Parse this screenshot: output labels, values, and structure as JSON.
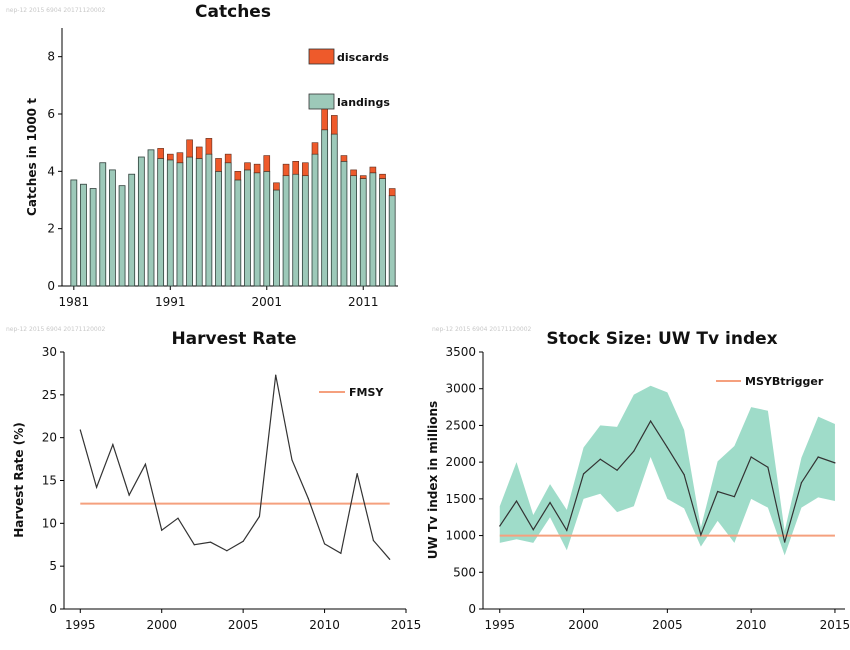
{
  "watermarks": [
    "nep-12 2015 6904 20171120002",
    "nep-12 2015 6904 20171120002",
    "nep-12 2015 6904 20171120002"
  ],
  "colors": {
    "landings": "#9dc9b9",
    "discards": "#ee5a2b",
    "reference_line": "#f5a07e",
    "band": "#9fdcc9",
    "line": "#333333"
  },
  "chart_data": [
    {
      "type": "bar",
      "title": "Catches",
      "ylabel": "Catches in 1000 t",
      "xlabel": "",
      "ylim": [
        0,
        9
      ],
      "yticks": [
        "0",
        "2",
        "4",
        "6",
        "8"
      ],
      "xticks": [
        "1981",
        "1991",
        "2001",
        "2011"
      ],
      "legend": {
        "placement": "top-right",
        "entries": [
          "discards",
          "landings"
        ]
      },
      "categories": [
        1981,
        1982,
        1983,
        1984,
        1985,
        1986,
        1987,
        1988,
        1989,
        1990,
        1991,
        1992,
        1993,
        1994,
        1995,
        1996,
        1997,
        1998,
        1999,
        2000,
        2001,
        2002,
        2003,
        2004,
        2005,
        2006,
        2007,
        2008,
        2009,
        2010,
        2011,
        2012,
        2013,
        2014
      ],
      "series": [
        {
          "name": "landings",
          "values": [
            3.7,
            3.55,
            3.4,
            4.3,
            4.05,
            3.5,
            3.9,
            4.5,
            4.75,
            4.45,
            4.4,
            4.3,
            4.5,
            4.45,
            4.6,
            4.0,
            4.3,
            3.7,
            4.05,
            3.95,
            4.0,
            3.35,
            3.85,
            3.9,
            3.85,
            4.6,
            5.45,
            5.3,
            4.35,
            3.85,
            3.75,
            3.95,
            3.75,
            3.15
          ]
        },
        {
          "name": "discards",
          "values": [
            0,
            0,
            0,
            0,
            0,
            0,
            0,
            0,
            0,
            0.35,
            0.2,
            0.35,
            0.6,
            0.4,
            0.55,
            0.45,
            0.3,
            0.3,
            0.25,
            0.3,
            0.55,
            0.25,
            0.4,
            0.45,
            0.45,
            0.4,
            0.75,
            0.65,
            0.2,
            0.2,
            0.1,
            0.2,
            0.15,
            0.25
          ]
        }
      ]
    },
    {
      "type": "line",
      "title": "Harvest Rate",
      "ylabel": "Harvest Rate (%)",
      "xlabel": "",
      "xlim": [
        1994,
        2015
      ],
      "ylim": [
        0,
        30
      ],
      "xticks": [
        "1995",
        "2000",
        "2005",
        "2010",
        "2015"
      ],
      "yticks": [
        "0",
        "5",
        "10",
        "15",
        "20",
        "25",
        "30"
      ],
      "legend": {
        "placement": "top-right",
        "entries": [
          "FMSY"
        ]
      },
      "x": [
        1995,
        1996,
        1997,
        1998,
        1999,
        2000,
        2001,
        2002,
        2003,
        2004,
        2005,
        2006,
        2007,
        2008,
        2009,
        2010,
        2011,
        2012,
        2013,
        2014
      ],
      "series": [
        {
          "name": "",
          "values": [
            20.9,
            14.2,
            19.2,
            13.3,
            16.9,
            9.2,
            10.6,
            7.5,
            7.8,
            6.8,
            7.9,
            10.8,
            27.3,
            17.4,
            12.9,
            7.6,
            6.5,
            15.8,
            8.0,
            5.8
          ]
        }
      ],
      "reference": {
        "name": "FMSY",
        "value": 12.3,
        "x": [
          1995,
          2014
        ]
      }
    },
    {
      "type": "area",
      "title": "Stock Size: UW Tv index",
      "ylabel": "UW Tv index  in millions",
      "xlabel": "",
      "xlim": [
        1994,
        2015.6
      ],
      "ylim": [
        0,
        3500
      ],
      "xticks": [
        "1995",
        "2000",
        "2005",
        "2010",
        "2015"
      ],
      "yticks": [
        "0",
        "500",
        "1000",
        "1500",
        "2000",
        "2500",
        "3000",
        "3500"
      ],
      "legend": {
        "placement": "top-right",
        "entries": [
          "MSYBtrigger"
        ]
      },
      "x": [
        1995,
        1996,
        1997,
        1998,
        1999,
        2000,
        2001,
        2002,
        2003,
        2004,
        2005,
        2006,
        2007,
        2008,
        2009,
        2010,
        2011,
        2012,
        2013,
        2014,
        2015
      ],
      "series": [
        {
          "name": "",
          "values": [
            1130,
            1470,
            1080,
            1450,
            1070,
            1840,
            2040,
            1890,
            2150,
            2560,
            2200,
            1830,
            1010,
            1600,
            1530,
            2070,
            1930,
            910,
            1720,
            2070,
            1990
          ]
        }
      ],
      "band_upper": [
        1400,
        2000,
        1280,
        1700,
        1350,
        2200,
        2500,
        2480,
        2920,
        3040,
        2950,
        2440,
        1110,
        2010,
        2220,
        2750,
        2700,
        1060,
        2060,
        2620,
        2520
      ],
      "band_lower": [
        900,
        950,
        900,
        1250,
        800,
        1500,
        1570,
        1320,
        1400,
        2070,
        1500,
        1370,
        850,
        1200,
        900,
        1500,
        1380,
        730,
        1380,
        1520,
        1470
      ],
      "reference": {
        "name": "MSYBtrigger",
        "value": 1000,
        "x": [
          1995,
          2015
        ]
      }
    }
  ]
}
